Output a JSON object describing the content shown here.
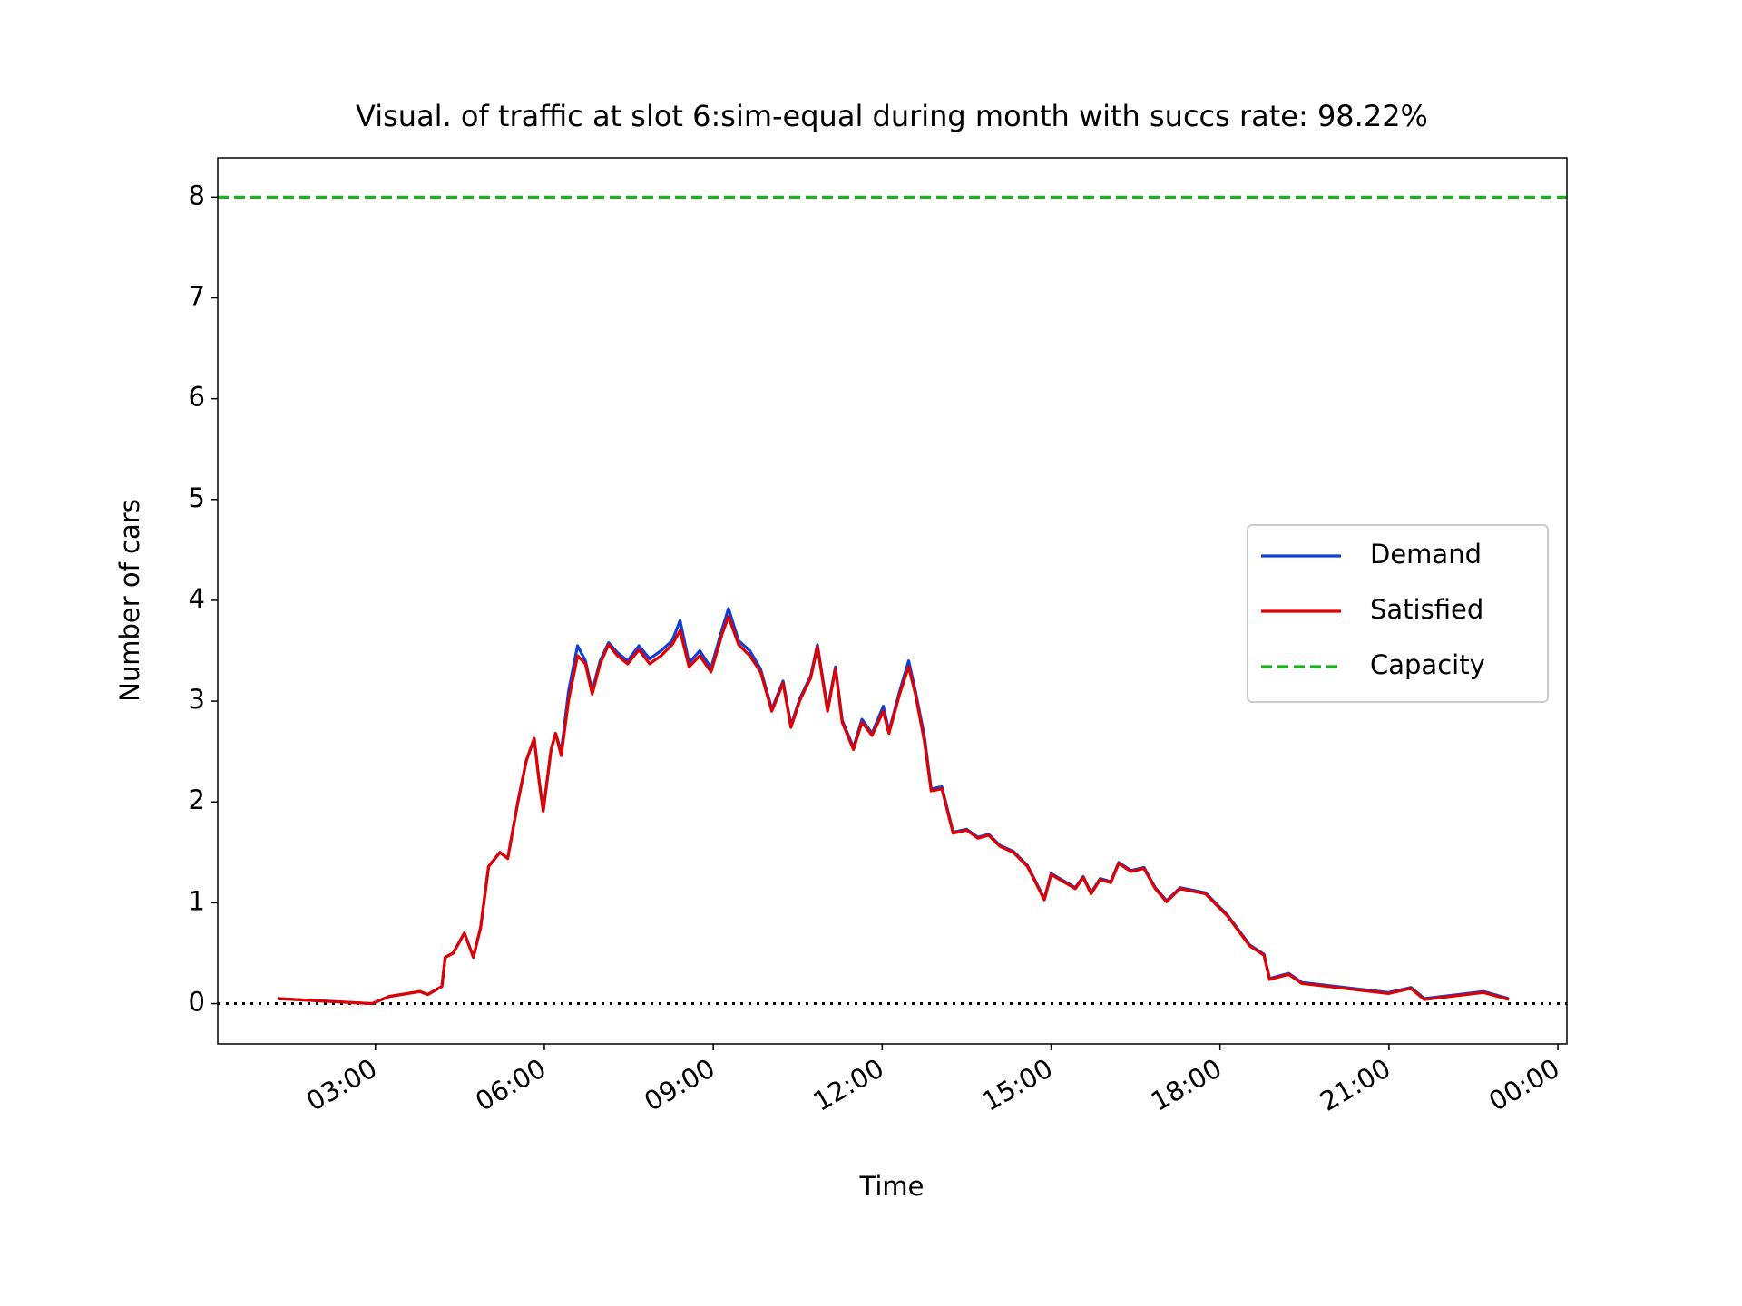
{
  "chart_data": {
    "type": "line",
    "title": "Visual. of traffic at slot 6:sim-equal during month with succs rate: 98.22%",
    "xlabel": "Time",
    "ylabel": "Number of cars",
    "x": [
      1.26,
      2.94,
      3.24,
      3.79,
      3.93,
      4.18,
      4.24,
      4.38,
      4.58,
      4.74,
      4.87,
      5.01,
      5.21,
      5.35,
      5.53,
      5.68,
      5.82,
      5.9,
      5.98,
      6.12,
      6.2,
      6.3,
      6.43,
      6.59,
      6.73,
      6.85,
      6.99,
      7.14,
      7.3,
      7.48,
      7.68,
      7.87,
      8.07,
      8.27,
      8.41,
      8.57,
      8.76,
      8.96,
      9.16,
      9.27,
      9.45,
      9.65,
      9.84,
      10.04,
      10.24,
      10.38,
      10.54,
      10.73,
      10.85,
      11.03,
      11.17,
      11.29,
      11.49,
      11.64,
      11.82,
      12.02,
      12.12,
      12.31,
      12.47,
      12.59,
      12.75,
      12.87,
      13.06,
      13.26,
      13.5,
      13.7,
      13.89,
      14.09,
      14.33,
      14.58,
      14.88,
      15.0,
      15.43,
      15.57,
      15.71,
      15.87,
      16.06,
      16.2,
      16.42,
      16.65,
      16.85,
      17.05,
      17.29,
      17.74,
      18.13,
      18.53,
      18.78,
      18.88,
      19.22,
      19.45,
      20.99,
      21.39,
      21.63,
      22.68,
      23.13
    ],
    "series": [
      {
        "name": "Demand",
        "color": "#1040d8",
        "values": [
          0.05,
          0,
          0.07,
          0.12,
          0.09,
          0.17,
          0.46,
          0.5,
          0.7,
          0.46,
          0.76,
          1.36,
          1.5,
          1.44,
          2.0,
          2.41,
          2.63,
          2.24,
          1.91,
          2.52,
          2.68,
          2.5,
          3.1,
          3.55,
          3.4,
          3.1,
          3.4,
          3.58,
          3.48,
          3.4,
          3.55,
          3.42,
          3.5,
          3.6,
          3.8,
          3.38,
          3.5,
          3.33,
          3.72,
          3.92,
          3.6,
          3.5,
          3.32,
          2.92,
          3.2,
          2.76,
          3.03,
          3.25,
          3.56,
          2.92,
          3.34,
          2.81,
          2.54,
          2.82,
          2.68,
          2.95,
          2.7,
          3.1,
          3.4,
          3.1,
          2.65,
          2.13,
          2.15,
          1.7,
          1.73,
          1.65,
          1.68,
          1.57,
          1.51,
          1.37,
          1.04,
          1.29,
          1.15,
          1.26,
          1.1,
          1.24,
          1.21,
          1.4,
          1.32,
          1.35,
          1.15,
          1.02,
          1.15,
          1.1,
          0.88,
          0.58,
          0.49,
          0.25,
          0.3,
          0.21,
          0.11,
          0.16,
          0.05,
          0.12,
          0.05
        ]
      },
      {
        "name": "Satisfied",
        "color": "#e00000",
        "values": [
          0.05,
          0,
          0.07,
          0.12,
          0.09,
          0.17,
          0.46,
          0.5,
          0.7,
          0.46,
          0.76,
          1.36,
          1.5,
          1.44,
          2.0,
          2.41,
          2.63,
          2.24,
          1.91,
          2.52,
          2.68,
          2.46,
          3.01,
          3.45,
          3.37,
          3.07,
          3.37,
          3.56,
          3.45,
          3.37,
          3.51,
          3.37,
          3.45,
          3.56,
          3.7,
          3.34,
          3.45,
          3.29,
          3.67,
          3.84,
          3.56,
          3.45,
          3.29,
          2.9,
          3.18,
          2.74,
          3.01,
          3.23,
          3.54,
          2.9,
          3.32,
          2.79,
          2.52,
          2.79,
          2.66,
          2.9,
          2.68,
          3.07,
          3.34,
          3.07,
          2.6,
          2.11,
          2.13,
          1.69,
          1.72,
          1.64,
          1.67,
          1.56,
          1.5,
          1.36,
          1.03,
          1.28,
          1.14,
          1.25,
          1.09,
          1.23,
          1.2,
          1.39,
          1.31,
          1.34,
          1.14,
          1.01,
          1.14,
          1.09,
          0.87,
          0.57,
          0.48,
          0.24,
          0.29,
          0.2,
          0.1,
          0.15,
          0.04,
          0.11,
          0.04
        ]
      }
    ],
    "capacity": {
      "name": "Capacity",
      "color": "#1cb01c",
      "value": 8
    },
    "xlim": [
      0.2,
      24.16
    ],
    "ylim": [
      -0.4,
      8.39
    ],
    "xticks": [
      {
        "value": 3,
        "label": "03:00"
      },
      {
        "value": 6,
        "label": "06:00"
      },
      {
        "value": 9,
        "label": "09:00"
      },
      {
        "value": 12,
        "label": "12:00"
      },
      {
        "value": 15,
        "label": "15:00"
      },
      {
        "value": 18,
        "label": "18:00"
      },
      {
        "value": 21,
        "label": "21:00"
      },
      {
        "value": 24,
        "label": "00:00"
      }
    ],
    "yticks": [
      0,
      1,
      2,
      3,
      4,
      5,
      6,
      7,
      8
    ],
    "legend": "center right"
  }
}
